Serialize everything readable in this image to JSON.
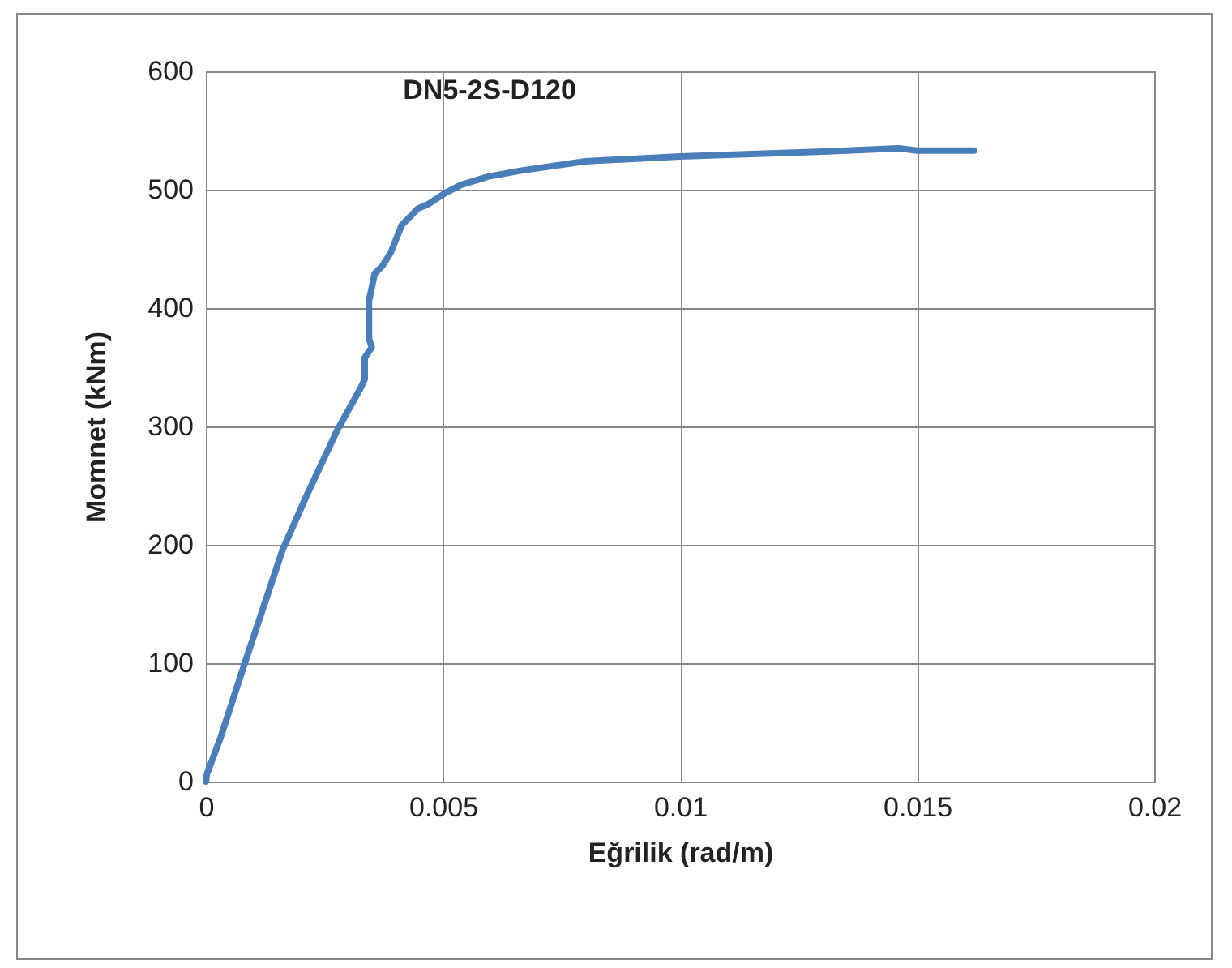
{
  "chart_data": {
    "type": "line",
    "title": "DN5-2S-D120",
    "xlabel": "Eğrilik (rad/m)",
    "ylabel": "Momnet (kNm)",
    "series": [
      {
        "color": "#4a7ebb",
        "x": [
          0,
          2e-05,
          0.0003,
          0.00082,
          0.00162,
          0.00213,
          0.00276,
          0.00327,
          0.00335,
          0.00335,
          0.0035,
          0.00344,
          0.00344,
          0.00356,
          0.00373,
          0.0039,
          0.00413,
          0.00447,
          0.0047,
          0.00504,
          0.00538,
          0.00595,
          0.00663,
          0.008,
          0.01,
          0.0129,
          0.01461,
          0.015,
          0.0162
        ],
        "values": [
          0,
          6,
          36,
          100,
          196,
          242,
          296,
          333,
          340,
          358,
          367,
          374,
          406,
          429,
          436,
          447,
          470,
          484,
          488,
          497,
          504,
          511,
          516,
          524,
          528,
          532,
          535,
          533,
          533
        ]
      }
    ],
    "xlim": [
      0,
      0.02
    ],
    "xticks": [
      0,
      0.005,
      0.01,
      0.015,
      0.02
    ],
    "ylim": [
      0,
      600
    ],
    "yticks": [
      0,
      100,
      200,
      300,
      400,
      500,
      600
    ],
    "grid": true,
    "marker": "none",
    "line_style": "solid"
  }
}
